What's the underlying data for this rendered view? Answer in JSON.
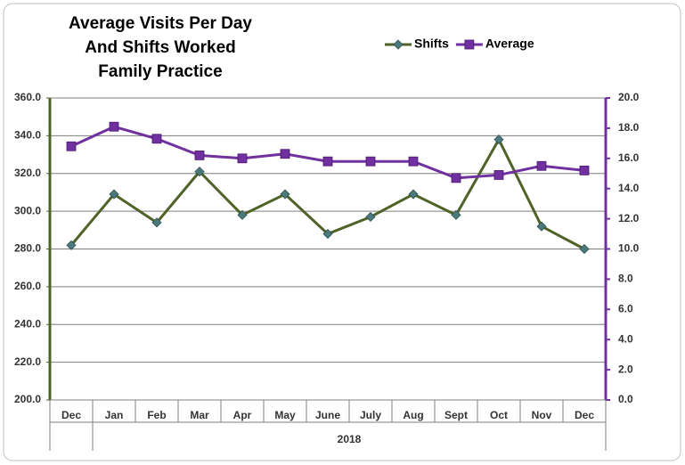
{
  "chart_data": {
    "type": "line",
    "title": [
      "Average Visits Per Day",
      "And Shifts Worked",
      "Family Practice"
    ],
    "categories": [
      "Dec",
      "Jan",
      "Feb",
      "Mar",
      "Apr",
      "May",
      "June",
      "July",
      "Aug",
      "Sept",
      "Oct",
      "Nov",
      "Dec"
    ],
    "group_label": "2018",
    "series": [
      {
        "name": "Shifts",
        "color": "#4f6228",
        "marker_color": "#4a7a7c",
        "marker": "diamond",
        "axis": "y",
        "values": [
          282,
          309,
          294,
          321,
          298,
          309,
          288,
          297,
          309,
          298,
          338,
          292,
          280
        ]
      },
      {
        "name": "Average",
        "color": "#7030a0",
        "marker_color": "#7030a0",
        "marker": "square",
        "axis": "y2",
        "values": [
          16.8,
          18.1,
          17.3,
          16.2,
          16.0,
          16.3,
          15.8,
          15.8,
          15.8,
          14.7,
          14.9,
          15.5,
          15.2
        ]
      }
    ],
    "ylim": [
      200,
      360
    ],
    "yticks": [
      {
        "value": 200,
        "label": "200.0"
      },
      {
        "value": 220,
        "label": "220.0"
      },
      {
        "value": 240,
        "label": "240.0"
      },
      {
        "value": 260,
        "label": "260.0"
      },
      {
        "value": 280,
        "label": "280.0"
      },
      {
        "value": 300,
        "label": "300.0"
      },
      {
        "value": 320,
        "label": "320.0"
      },
      {
        "value": 340,
        "label": "340.0"
      },
      {
        "value": 360,
        "label": "360.0"
      }
    ],
    "y2lim": [
      0,
      20
    ],
    "y2ticks": [
      {
        "value": 0,
        "label": "0.0"
      },
      {
        "value": 2,
        "label": "2.0"
      },
      {
        "value": 4,
        "label": "4.0"
      },
      {
        "value": 6,
        "label": "6.0"
      },
      {
        "value": 8,
        "label": "8.0"
      },
      {
        "value": 10,
        "label": "10.0"
      },
      {
        "value": 12,
        "label": "12.0"
      },
      {
        "value": 14,
        "label": "14.0"
      },
      {
        "value": 16,
        "label": "16.0"
      },
      {
        "value": 18,
        "label": "18.0"
      },
      {
        "value": 20,
        "label": "20.0"
      }
    ],
    "grid": true,
    "legend": "top-right"
  }
}
